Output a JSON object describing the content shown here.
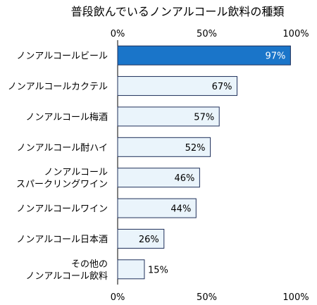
{
  "chart_data": {
    "type": "bar",
    "orientation": "horizontal",
    "title": "普段飲んでいるノンアルコール飲料の種類",
    "categories": [
      [
        "ノンアルコールビール"
      ],
      [
        "ノンアルコールカクテル"
      ],
      [
        "ノンアルコール梅酒"
      ],
      [
        "ノンアルコール酎ハイ"
      ],
      [
        "ノンアルコール",
        "スパークリングワイン"
      ],
      [
        "ノンアルコールワイン"
      ],
      [
        "ノンアルコール日本酒"
      ],
      [
        "その他の",
        "ノンアルコール飲料"
      ]
    ],
    "values": [
      97,
      67,
      57,
      52,
      46,
      44,
      26,
      15
    ],
    "value_labels": [
      "97%",
      "67%",
      "57%",
      "52%",
      "46%",
      "44%",
      "26%",
      "15%"
    ],
    "xlim": [
      0,
      100
    ],
    "ticks": [
      0,
      50,
      100
    ],
    "tick_labels": [
      "0%",
      "50%",
      "100%"
    ],
    "grid": false,
    "colors": {
      "highlight_fill": "#1a75c9",
      "highlight_label": "#ffffff",
      "bar_fill": "#eaf4fb",
      "bar_stroke": "#1f2f5a",
      "label": "#000000"
    }
  }
}
